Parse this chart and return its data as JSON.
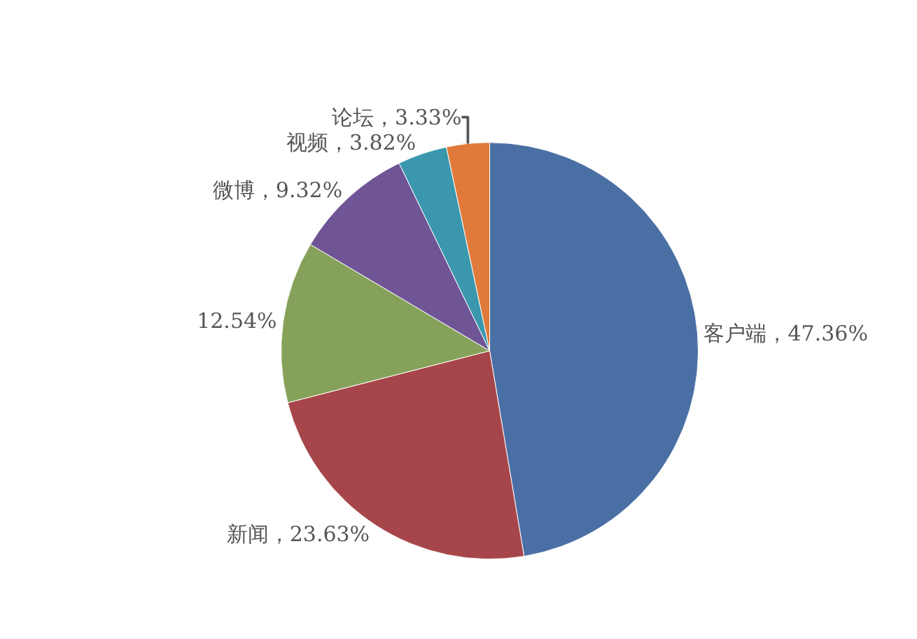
{
  "chart_data": {
    "type": "pie",
    "categories": [
      "客户端",
      "新闻",
      null,
      "微博",
      "视频",
      "论坛"
    ],
    "values": [
      47.36,
      23.63,
      12.54,
      9.32,
      3.82,
      3.33
    ],
    "colors": [
      "#4a6fa5",
      "#a7464a",
      "#86a25a",
      "#6f5496",
      "#3a97ad",
      "#e07a3a"
    ],
    "value_labels": [
      "47.36%",
      "23.63%",
      "12.54%",
      "9.32%",
      "3.82%",
      "3.33%"
    ],
    "legend": false
  }
}
